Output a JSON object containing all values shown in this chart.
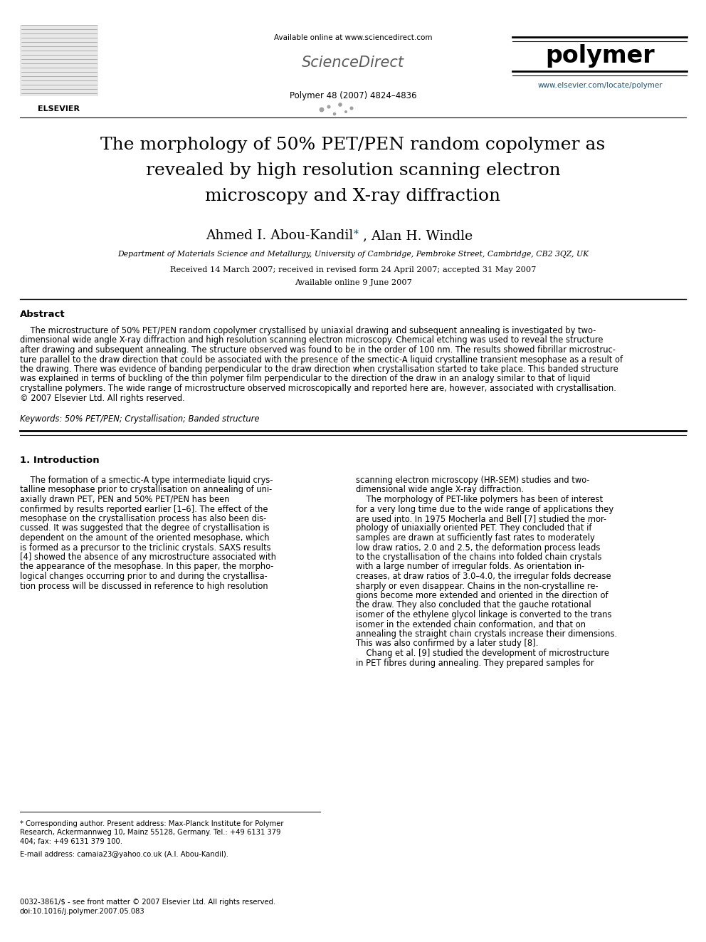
{
  "bg_color": "#ffffff",
  "page_width": 9.92,
  "page_height": 13.23,
  "dpi": 100,
  "header": {
    "available_online": "Available online at www.sciencedirect.com",
    "journal_info": "Polymer 48 (2007) 4824–4836",
    "url": "www.elsevier.com/locate/polymer"
  },
  "title_line1": "The morphology of 50% PET/PEN random copolymer as",
  "title_line2": "revealed by high resolution scanning electron",
  "title_line3": "microscopy and X-ray diffraction",
  "authors": "Ahmed I. Abou-Kandil",
  "authors2": ", Alan H. Windle",
  "affiliation": "Department of Materials Science and Metallurgy, University of Cambridge, Pembroke Street, Cambridge, CB2 3QZ, UK",
  "received": "Received 14 March 2007; received in revised form 24 April 2007; accepted 31 May 2007",
  "available": "Available online 9 June 2007",
  "abstract_title": "Abstract",
  "keywords": "Keywords: 50% PET/PEN; Crystallisation; Banded structure",
  "section1_title": "1. Introduction",
  "footnote_corresponding": "* Corresponding author. Present address: Max-Planck Institute for Polymer\nResearch, Ackermannweg 10, Mainz 55128, Germany. Tel.: +49 6131 379\n404; fax: +49 6131 379 100.",
  "footnote_email": "E-mail address: camaia23@yahoo.co.uk (A.I. Abou-Kandil).",
  "footer_left": "0032-3861/$ - see front matter © 2007 Elsevier Ltd. All rights reserved.\ndoi:10.1016/j.polymer.2007.05.083",
  "text_color": "#000000",
  "url_color": "#1a5276",
  "sd_gray": "#7f8c8d"
}
